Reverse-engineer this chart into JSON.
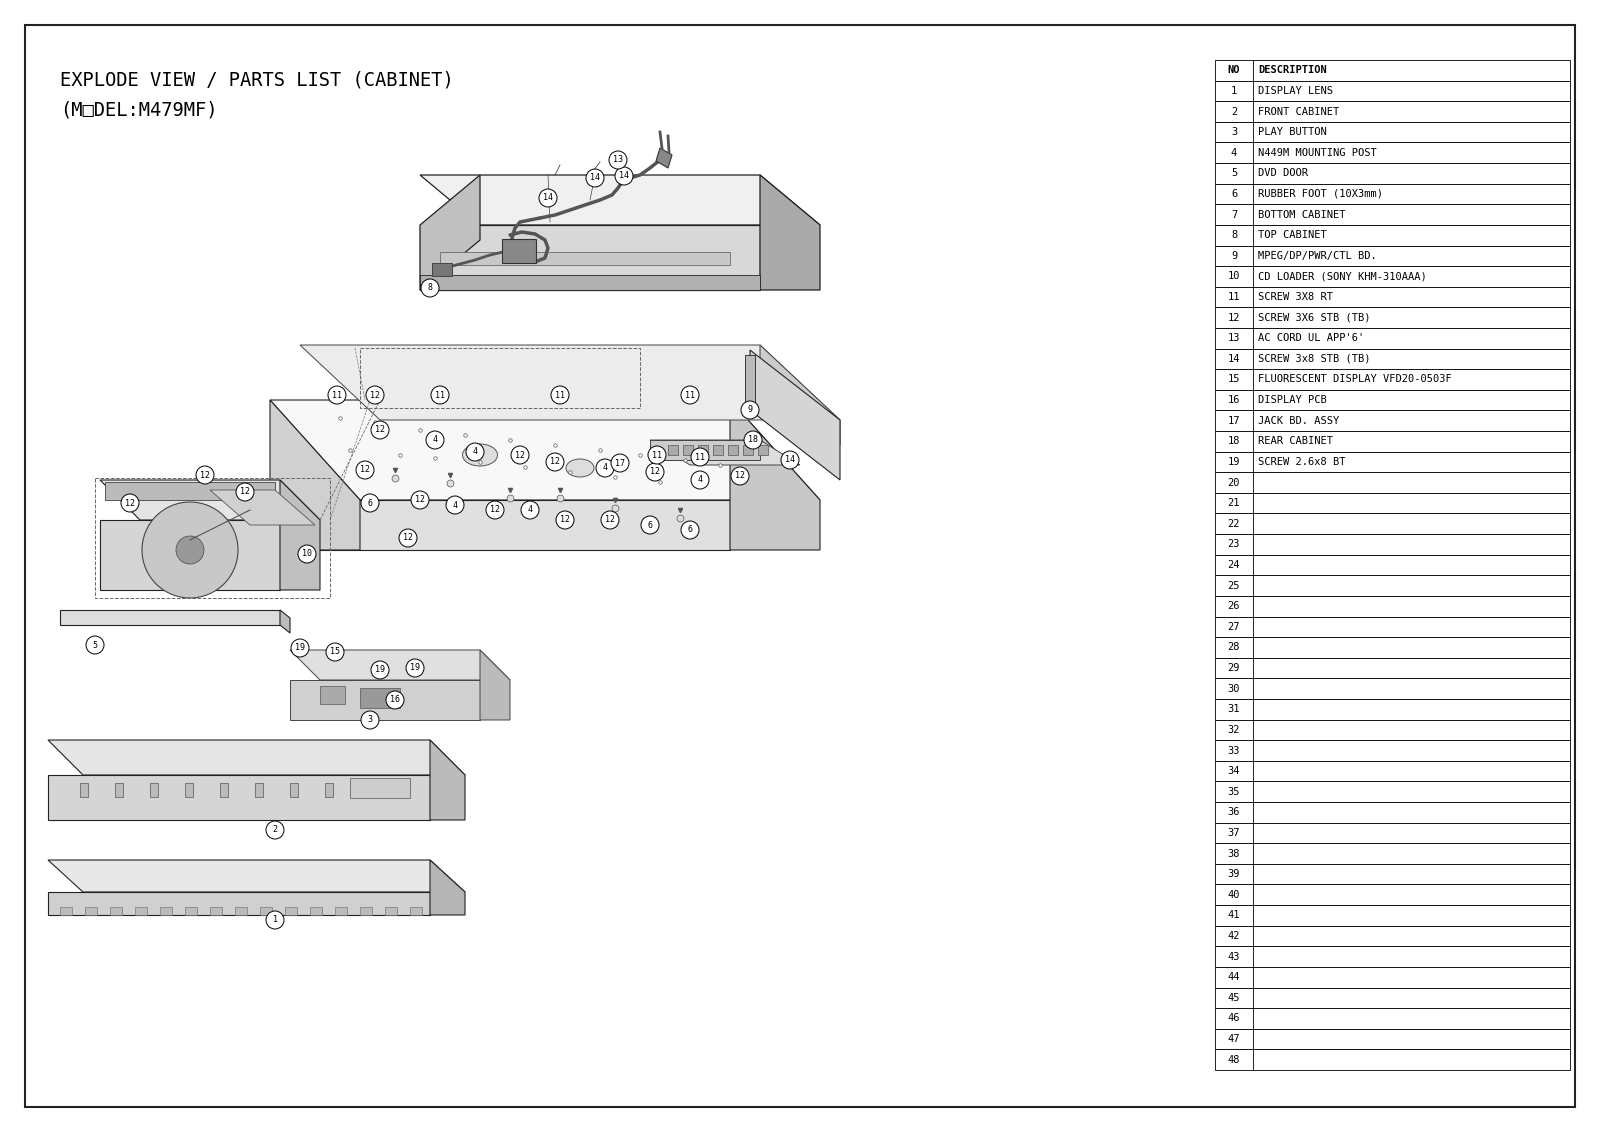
{
  "title_line1": "EXPLODE VIEW / PARTS LIST (CABINET)",
  "title_line2": "(M□DEL:M479MF)",
  "bg_color": "#ffffff",
  "border_color": "#000000",
  "parts": [
    {
      "no": "NO",
      "desc": "DESCRIPTION",
      "header": true
    },
    {
      "no": "1",
      "desc": "DISPLAY LENS"
    },
    {
      "no": "2",
      "desc": "FRONT CABINET"
    },
    {
      "no": "3",
      "desc": "PLAY BUTTON"
    },
    {
      "no": "4",
      "desc": "N449M MOUNTING POST"
    },
    {
      "no": "5",
      "desc": "DVD DOOR"
    },
    {
      "no": "6",
      "desc": "RUBBER FOOT (10X3mm)"
    },
    {
      "no": "7",
      "desc": "BOTTOM CABINET"
    },
    {
      "no": "8",
      "desc": "TOP CABINET"
    },
    {
      "no": "9",
      "desc": "MPEG/DP/PWR/CTL BD."
    },
    {
      "no": "10",
      "desc": "CD LOADER (SONY KHM-310AAA)"
    },
    {
      "no": "11",
      "desc": "SCREW 3X8 RT"
    },
    {
      "no": "12",
      "desc": "SCREW 3X6 STB (TB)"
    },
    {
      "no": "13",
      "desc": "AC CORD UL APP'6'"
    },
    {
      "no": "14",
      "desc": "SCREW 3x8 STB (TB)"
    },
    {
      "no": "15",
      "desc": "FLUORESCENT DISPLAY VFD20-0503F"
    },
    {
      "no": "16",
      "desc": "DISPLAY PCB"
    },
    {
      "no": "17",
      "desc": "JACK BD. ASSY"
    },
    {
      "no": "18",
      "desc": "REAR CABINET"
    },
    {
      "no": "19",
      "desc": "SCREW 2.6x8 BT"
    },
    {
      "no": "20",
      "desc": ""
    },
    {
      "no": "21",
      "desc": ""
    },
    {
      "no": "22",
      "desc": ""
    },
    {
      "no": "23",
      "desc": ""
    },
    {
      "no": "24",
      "desc": ""
    },
    {
      "no": "25",
      "desc": ""
    },
    {
      "no": "26",
      "desc": ""
    },
    {
      "no": "27",
      "desc": ""
    },
    {
      "no": "28",
      "desc": ""
    },
    {
      "no": "29",
      "desc": ""
    },
    {
      "no": "30",
      "desc": ""
    },
    {
      "no": "31",
      "desc": ""
    },
    {
      "no": "32",
      "desc": ""
    },
    {
      "no": "33",
      "desc": ""
    },
    {
      "no": "34",
      "desc": ""
    },
    {
      "no": "35",
      "desc": ""
    },
    {
      "no": "36",
      "desc": ""
    },
    {
      "no": "37",
      "desc": ""
    },
    {
      "no": "38",
      "desc": ""
    },
    {
      "no": "39",
      "desc": ""
    },
    {
      "no": "40",
      "desc": ""
    },
    {
      "no": "41",
      "desc": ""
    },
    {
      "no": "42",
      "desc": ""
    },
    {
      "no": "43",
      "desc": ""
    },
    {
      "no": "44",
      "desc": ""
    },
    {
      "no": "45",
      "desc": ""
    },
    {
      "no": "46",
      "desc": ""
    },
    {
      "no": "47",
      "desc": ""
    },
    {
      "no": "48",
      "desc": ""
    }
  ],
  "diagram_color": "#222222",
  "light_gray": "#f0f0f0",
  "mid_gray": "#d8d8d8",
  "dark_gray": "#aaaaaa"
}
